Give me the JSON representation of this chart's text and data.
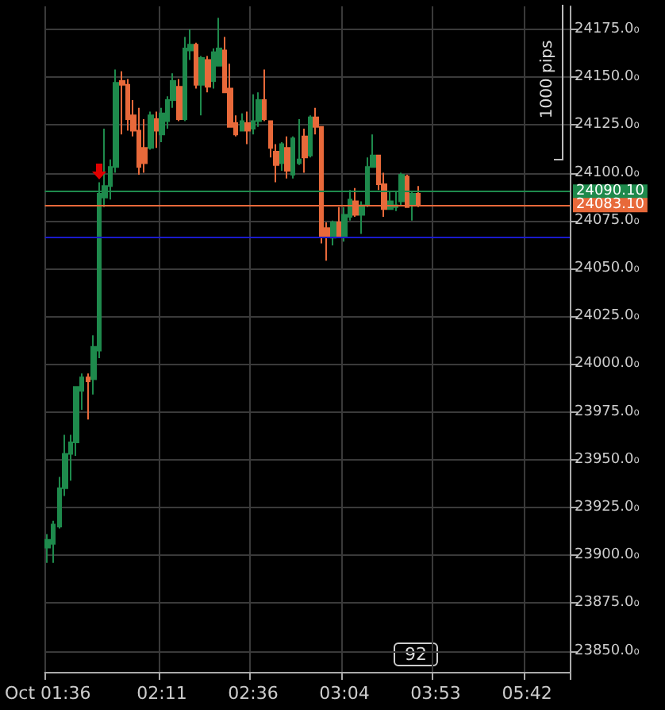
{
  "chart_data": {
    "type": "candlestick",
    "categories": [
      "Oct 01:36",
      null,
      null,
      null,
      null,
      null,
      null,
      null,
      null,
      null,
      null,
      null,
      null,
      null,
      null,
      null,
      null,
      null,
      null,
      null,
      "02:11",
      null,
      null,
      null,
      null,
      null,
      null,
      null,
      null,
      null,
      null,
      null,
      null,
      null,
      null,
      null,
      "02:36",
      null,
      null,
      null,
      null,
      null,
      null,
      null,
      null,
      null,
      null,
      null,
      null,
      null,
      null,
      null,
      "03:04",
      null,
      null,
      null,
      null,
      null,
      null,
      null,
      null,
      null,
      null,
      null,
      null,
      null,
      null,
      null,
      "03:53",
      null,
      null,
      null,
      null,
      null,
      null,
      null,
      null,
      null,
      null,
      null,
      null,
      null,
      null,
      null,
      "05:42",
      null,
      null,
      null,
      null,
      null,
      null,
      null
    ],
    "ohlc": [
      [
        23904,
        23911,
        23896,
        23908
      ],
      [
        23906,
        23918,
        23896,
        23916
      ],
      [
        23915,
        23941,
        23914,
        23935
      ],
      [
        23935,
        23963,
        23931,
        23953
      ],
      [
        23953,
        23963,
        23939,
        23959
      ],
      [
        23959,
        23988,
        23952,
        23988
      ],
      [
        23986,
        23995,
        23976,
        23993
      ],
      [
        23993,
        23995,
        23971,
        23991
      ],
      [
        23992,
        24015,
        23984,
        24009
      ],
      [
        24007,
        24095,
        24003,
        24089
      ],
      [
        24087,
        24123,
        24082,
        24093
      ],
      [
        24093,
        24107,
        24086,
        24103
      ],
      [
        24103,
        24154,
        24100,
        24147
      ],
      [
        24148,
        24153,
        24120,
        24146
      ],
      [
        24146,
        24149,
        24122,
        24128
      ],
      [
        24130,
        24138,
        24119,
        24122
      ],
      [
        24122,
        24134,
        24099,
        24103
      ],
      [
        24113,
        24128,
        24100,
        24105
      ],
      [
        24113,
        24132,
        24112,
        24130
      ],
      [
        24128,
        24132,
        24113,
        24122
      ],
      [
        24120,
        24134,
        24116,
        24131
      ],
      [
        24127,
        24140,
        24123,
        24138
      ],
      [
        24138,
        24152,
        24134,
        24148
      ],
      [
        24145,
        24149,
        24127,
        24128
      ],
      [
        24128,
        24171,
        24127,
        24165
      ],
      [
        24164,
        24175,
        24159,
        24167
      ],
      [
        24167,
        24168,
        24144,
        24146
      ],
      [
        24146,
        24161,
        24130,
        24160
      ],
      [
        24159,
        24161,
        24142,
        24145
      ],
      [
        24148,
        24165,
        24144,
        24163
      ],
      [
        24156,
        24181,
        24156,
        24165
      ],
      [
        24164,
        24171,
        24142,
        24142
      ],
      [
        24144,
        24157,
        24124,
        24124
      ],
      [
        24126,
        24130,
        24119,
        24120
      ],
      [
        24122,
        24131,
        24122,
        24127
      ],
      [
        24126,
        24132,
        24115,
        24122
      ],
      [
        24123,
        24141,
        24120,
        24127
      ],
      [
        24127,
        24142,
        24124,
        24138
      ],
      [
        24138,
        24154,
        24127,
        24128
      ],
      [
        24127,
        24127,
        24108,
        24113
      ],
      [
        24111,
        24115,
        24095,
        24104
      ],
      [
        24105,
        24116,
        24101,
        24115
      ],
      [
        24113,
        24119,
        24097,
        24101
      ],
      [
        24099,
        24119,
        24097,
        24118
      ],
      [
        24105,
        24128,
        24104,
        24107
      ],
      [
        24119,
        24123,
        24100,
        24108
      ],
      [
        24109,
        24130,
        24108,
        24129
      ],
      [
        24129,
        24134,
        24120,
        24124
      ],
      [
        24124,
        24124,
        24063,
        24067
      ],
      [
        24071,
        24074,
        24054,
        24067
      ],
      [
        24066,
        24075,
        24062,
        24074
      ],
      [
        24074,
        24082,
        24066,
        24067
      ],
      [
        24067,
        24082,
        24064,
        24078
      ],
      [
        24077,
        24091,
        24075,
        24086
      ],
      [
        24085,
        24092,
        24077,
        24078
      ],
      [
        24078,
        24085,
        24068,
        24083
      ],
      [
        24083,
        24108,
        24082,
        24103
      ],
      [
        24103,
        24120,
        24103,
        24109
      ],
      [
        24109,
        24109,
        24091,
        24094
      ],
      [
        24094,
        24100,
        24077,
        24081
      ],
      [
        24081,
        24090,
        24081,
        24085
      ],
      [
        24082,
        24090,
        24080,
        24083
      ],
      [
        24085,
        24100,
        24083,
        24099
      ],
      [
        24098,
        24099,
        24082,
        24082
      ],
      [
        24083,
        24090,
        24075,
        24089
      ],
      [
        24089,
        24093,
        24082,
        24083
      ],
      null,
      null,
      null,
      null,
      null,
      null,
      null,
      null,
      null,
      null,
      null,
      null,
      null,
      null,
      null,
      null,
      null,
      null,
      null,
      null,
      null,
      null,
      null,
      null,
      null,
      null
    ],
    "colors": [
      "#1e8a4c",
      "#1e8a4c",
      "#1e8a4c",
      "#1e8a4c",
      "#1e8a4c",
      "#1e8a4c",
      "#1e8a4c",
      "#e8693a",
      "#1e8a4c",
      "#1e8a4c",
      "#1e8a4c",
      "#1e8a4c",
      "#1e8a4c",
      "#e8693a",
      "#e8693a",
      "#e8693a",
      "#e8693a",
      "#e8693a",
      "#1e8a4c",
      "#e8693a",
      "#1e8a4c",
      "#1e8a4c",
      "#1e8a4c",
      "#e8693a",
      "#1e8a4c",
      "#1e8a4c",
      "#e8693a",
      "#1e8a4c",
      "#e8693a",
      "#1e8a4c",
      "#1e8a4c",
      "#e8693a",
      "#e8693a",
      "#e8693a",
      "#1e8a4c",
      "#e8693a",
      "#1e8a4c",
      "#1e8a4c",
      "#e8693a",
      "#e8693a",
      "#e8693a",
      "#1e8a4c",
      "#e8693a",
      "#1e8a4c",
      "#1e8a4c",
      "#e8693a",
      "#1e8a4c",
      "#e8693a",
      "#e8693a",
      "#e8693a",
      "#1e8a4c",
      "#e8693a",
      "#1e8a4c",
      "#1e8a4c",
      "#e8693a",
      "#1e8a4c",
      "#1e8a4c",
      "#1e8a4c",
      "#e8693a",
      "#e8693a",
      "#1e8a4c",
      "#1e8a4c",
      "#1e8a4c",
      "#e8693a",
      "#1e8a4c",
      "#e8693a",
      null,
      null,
      null,
      null,
      null,
      null,
      null,
      null,
      null,
      null,
      null,
      null,
      null,
      null,
      null,
      null,
      null,
      null,
      null,
      null,
      null,
      null,
      null,
      null,
      null,
      null
    ],
    "ylim": [
      23839,
      24187
    ],
    "yticks": [
      {
        "value": 23850,
        "label": "23850.0₀"
      },
      {
        "value": 23875,
        "label": "23875.0₀"
      },
      {
        "value": 23900,
        "label": "23900.0₀"
      },
      {
        "value": 23925,
        "label": "23925.0₀"
      },
      {
        "value": 23950,
        "label": "23950.0₀"
      },
      {
        "value": 23975,
        "label": "23975.0₀"
      },
      {
        "value": 24000,
        "label": "24000.0₀"
      },
      {
        "value": 24025,
        "label": "24025.0₀"
      },
      {
        "value": 24050,
        "label": "24050.0₀"
      },
      {
        "value": 24075,
        "label": "24075.0₀"
      },
      {
        "value": 24100,
        "label": "24100.0₀"
      },
      {
        "value": 24125,
        "label": "24125.0₀"
      },
      {
        "value": 24150,
        "label": "24150.0₀"
      },
      {
        "value": 24175,
        "label": "24175.0₀"
      }
    ],
    "ref_lines": [
      {
        "axis": "y",
        "value": 24090.1,
        "label": "24090.10",
        "color": "#1e8a4c"
      },
      {
        "axis": "y",
        "value": 24083.1,
        "label": "24083.10",
        "color": "#e8693a"
      },
      {
        "axis": "y",
        "value": 24066.7,
        "label": null,
        "color": "#1a1acc"
      }
    ],
    "annotations": [
      "1000 pips",
      "92"
    ],
    "grid": true
  }
}
